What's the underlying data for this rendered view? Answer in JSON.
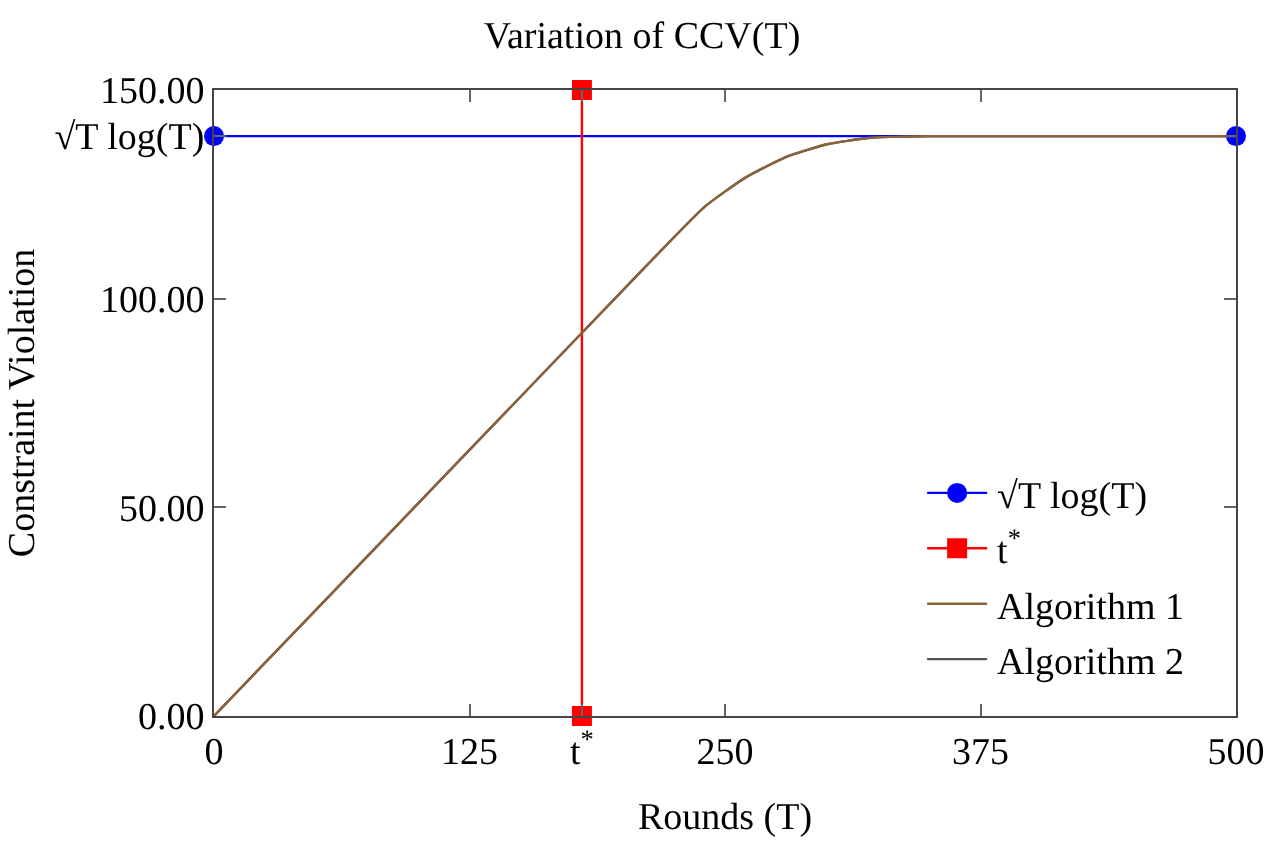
{
  "chart_data": {
    "type": "line",
    "title": "Variation of CCV(T)",
    "xlabel": "Rounds (T)",
    "ylabel": "Constraint Violation",
    "xlim": [
      0,
      500
    ],
    "xticks": [
      0,
      125,
      {
        "value": 180,
        "label": "t$^{*}$"
      },
      250,
      375,
      500
    ],
    "ylim": [
      0,
      150
    ],
    "yticks": [
      {
        "value": 0,
        "label": "0.00"
      },
      {
        "value": 50,
        "label": "50.00"
      },
      {
        "value": 100,
        "label": "100.00"
      },
      {
        "value": 138.96,
        "label": "√T log(T)"
      },
      {
        "value": 150,
        "label": "150.00"
      }
    ],
    "legend": "bottom right",
    "series": [
      {
        "name": "√T log(T)",
        "color": "#0000ff",
        "marker": "circle",
        "x": [
          0,
          500
        ],
        "values": [
          138.96,
          138.96
        ]
      },
      {
        "name": "t$^{*}$",
        "color": "#ff0000",
        "marker": "square",
        "x": [
          180,
          180
        ],
        "values": [
          0,
          150
        ]
      },
      {
        "name": "Algorithm 1",
        "color": "#8c6239",
        "marker": "none",
        "x": [
          0,
          50,
          100,
          150,
          200,
          240,
          260,
          280,
          300,
          320,
          350,
          500
        ],
        "values": [
          0,
          25.5,
          51,
          76.5,
          102,
          122,
          129,
          134,
          137,
          138.5,
          138.96,
          138.96
        ]
      },
      {
        "name": "Algorithm 2",
        "color": "#555555",
        "marker": "none",
        "x": [
          0,
          50,
          100,
          150,
          200,
          240,
          260,
          280,
          300,
          320,
          350,
          500
        ],
        "values": [
          0,
          25.5,
          51,
          76.5,
          102,
          122,
          129,
          134,
          137,
          138.5,
          138.96,
          138.96
        ]
      }
    ]
  }
}
